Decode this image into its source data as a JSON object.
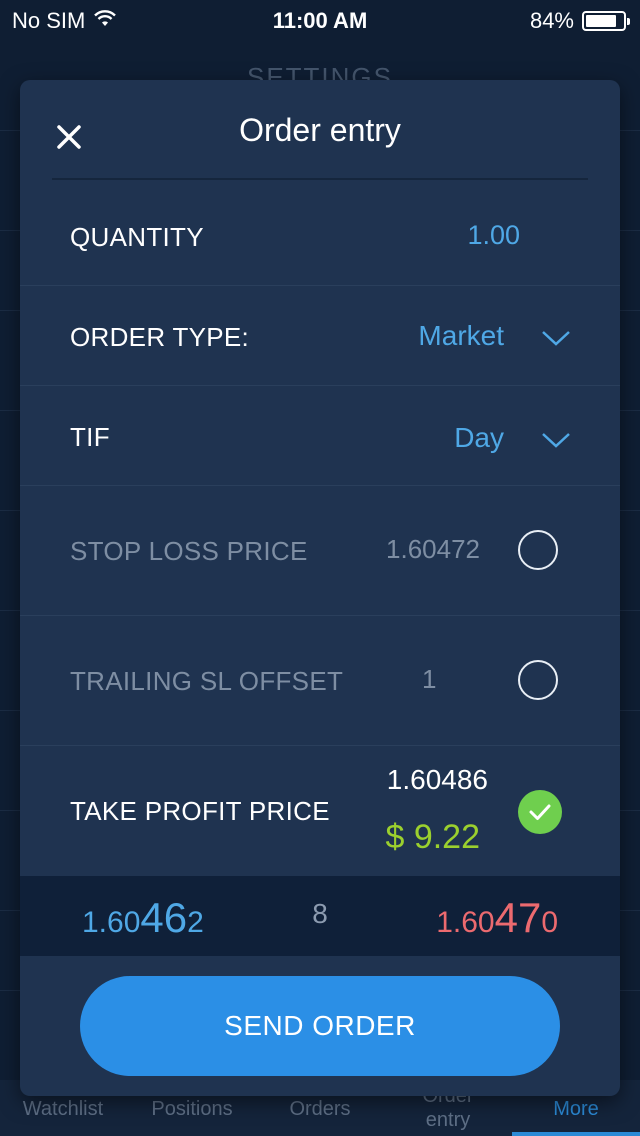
{
  "status_bar": {
    "carrier": "No SIM",
    "time": "11:00 AM",
    "battery_percent": "84%",
    "battery_level": 0.84
  },
  "background": {
    "title": "SETTINGS"
  },
  "tab_bar": {
    "tabs": [
      {
        "label": "Watchlist"
      },
      {
        "label": "Positions"
      },
      {
        "label": "Orders"
      },
      {
        "label": "Order\nentry"
      },
      {
        "label": "More"
      }
    ],
    "active_tab": "More"
  },
  "modal": {
    "title": "Order entry",
    "quantity": {
      "label": "QUANTITY",
      "value": "1.00"
    },
    "order_type": {
      "label": "ORDER TYPE:",
      "value": "Market"
    },
    "tif": {
      "label": "TIF",
      "value": "Day"
    },
    "stop_loss": {
      "label": "STOP LOSS PRICE",
      "value": "1.60472",
      "selected": false
    },
    "trailing_sl": {
      "label": "TRAILING SL OFFSET",
      "value": "1",
      "selected": false
    },
    "take_profit": {
      "label": "TAKE PROFIT PRICE",
      "value": "1.60486",
      "profit": "$ 9.22",
      "selected": true
    },
    "prices": {
      "bid_prefix": "1.60",
      "bid_big": "46",
      "bid_suffix": "2",
      "spread": "8",
      "ask_prefix": "1.60",
      "ask_big": "47",
      "ask_suffix": "0"
    },
    "send_button": "SEND ORDER"
  },
  "colors": {
    "accent": "#2b8fe6",
    "bid": "#4fa8e6",
    "ask": "#ec6a6f",
    "profit": "#9bd02e",
    "check": "#6fcf4e"
  }
}
